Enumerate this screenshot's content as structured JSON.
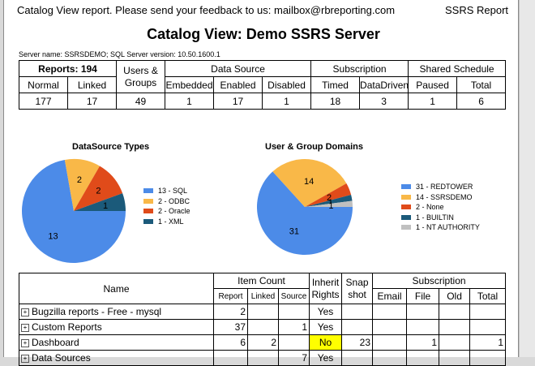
{
  "header": {
    "feedback": "Catalog View report. Please send your feedback to us: mailbox@rbreporting.com",
    "link": "SSRS Report"
  },
  "title": "Catalog View: Demo SSRS Server",
  "server_info": "Server name: SSRSDEMO; SQL Server version: 10.50.1600.1",
  "stats": {
    "reports_label": "Reports: 194",
    "users_groups_label": "Users & Groups",
    "data_source_label": "Data Source",
    "subscription_label": "Subscription",
    "shared_schedule_label": "Shared Schedule",
    "subheaders": [
      "Normal",
      "Linked",
      "Embedded",
      "Enabled",
      "Disabled",
      "Timed",
      "DataDriven",
      "Paused",
      "Total"
    ],
    "values": [
      "177",
      "17",
      "49",
      "1",
      "17",
      "1",
      "18",
      "3",
      "1",
      "6"
    ]
  },
  "chart_data": [
    {
      "type": "pie",
      "title": "DataSource Types",
      "labels": [
        "13 - SQL",
        "2 - ODBC",
        "2 - Oracle",
        "1 - XML"
      ],
      "values": [
        13,
        2,
        2,
        1
      ],
      "slice_labels": [
        "13",
        "2",
        "2",
        "1"
      ],
      "colors": [
        "#4c8be8",
        "#f9b848",
        "#e04b1a",
        "#1b5a7a"
      ]
    },
    {
      "type": "pie",
      "title": "User & Group Domains",
      "labels": [
        "31 - REDTOWER",
        "14 - SSRSDEMO",
        "2 - None",
        "1 - BUILTIN",
        "1 - NT AUTHORITY"
      ],
      "values": [
        31,
        14,
        2,
        1,
        1
      ],
      "slice_labels": [
        "31",
        "14",
        "2",
        "1",
        "1"
      ],
      "colors": [
        "#4c8be8",
        "#f9b848",
        "#e04b1a",
        "#1b5a7a",
        "#c0c0c0"
      ]
    }
  ],
  "items": {
    "headers": {
      "name": "Name",
      "item_count": "Item Count",
      "inherit": "Inherit Rights",
      "snapshot": "Snap shot",
      "subscription": "Subscription",
      "report": "Report",
      "linked": "Linked",
      "source": "Source",
      "email": "Email",
      "file": "File",
      "old": "Old",
      "total": "Total"
    },
    "rows": [
      {
        "name": "Bugzilla reports - Free - mysql",
        "report": "2",
        "linked": "",
        "source": "",
        "inherit": "Yes",
        "snapshot": "",
        "email": "",
        "file": "",
        "old": "",
        "total": ""
      },
      {
        "name": "Custom Reports",
        "report": "37",
        "linked": "",
        "source": "1",
        "inherit": "Yes",
        "snapshot": "",
        "email": "",
        "file": "",
        "old": "",
        "total": ""
      },
      {
        "name": "Dashboard",
        "report": "6",
        "linked": "2",
        "source": "",
        "inherit": "No",
        "snapshot": "23",
        "email": "",
        "file": "1",
        "old": "",
        "total": "1"
      },
      {
        "name": "Data Sources",
        "report": "",
        "linked": "",
        "source": "7",
        "inherit": "Yes",
        "snapshot": "",
        "email": "",
        "file": "",
        "old": "",
        "total": ""
      }
    ]
  }
}
